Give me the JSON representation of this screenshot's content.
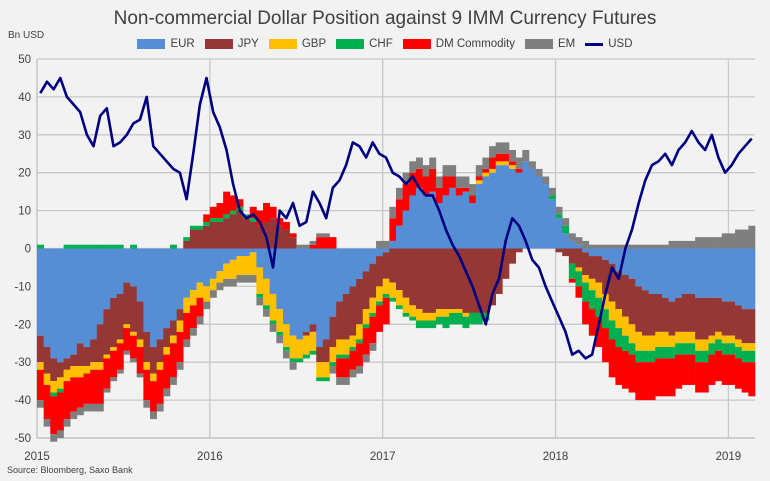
{
  "chart_data": {
    "type": "bar",
    "subtype": "stacked-bar-with-line",
    "title": "Non-commercial Dollar Position against 9 IMM Currency Futures",
    "ylabel": "Bn USD",
    "xlabel": "",
    "ylim": [
      -50,
      50
    ],
    "yticks": [
      50,
      40,
      30,
      20,
      10,
      0,
      -10,
      -20,
      -30,
      -40,
      -50
    ],
    "xticks": [
      "2015",
      "2016",
      "2017",
      "2018",
      "2019"
    ],
    "xtick_positions_in_periods": [
      0,
      26,
      52,
      78,
      104
    ],
    "period": "biweekly, Jan 2015 - Feb 2019",
    "grid": true,
    "legend_position": "top",
    "source": "Source: Bloomberg, Saxo Bank",
    "series": [
      {
        "name": "EUR",
        "kind": "bar",
        "color": "#558ed5",
        "values": [
          -23,
          -26,
          -29,
          -30,
          -29,
          -28,
          -25,
          -26,
          -24,
          -20,
          -16,
          -13,
          -12,
          -9,
          -10,
          -14,
          -22,
          -26,
          -24,
          -21,
          -19,
          -16,
          -13,
          -11,
          -9,
          -10,
          -8,
          -6,
          -4,
          -3,
          -2,
          -2,
          -1,
          -5,
          -8,
          -12,
          -16,
          -20,
          -23,
          -24,
          -22,
          -20,
          -26,
          -24,
          -18,
          -14,
          -12,
          -10,
          -8,
          -6,
          -4,
          -2,
          -1,
          2,
          6,
          10,
          14,
          16,
          14,
          15,
          12,
          14,
          16,
          14,
          15,
          12,
          17,
          19,
          20,
          22,
          22,
          21,
          20,
          23,
          21,
          19,
          17,
          13,
          8,
          4,
          2,
          1,
          -1,
          -2,
          -2,
          -3,
          -4,
          -6,
          -7,
          -8,
          -10,
          -11,
          -12,
          -12,
          -13,
          -14,
          -13,
          -12,
          -12,
          -13,
          -13,
          -13,
          -13,
          -14,
          -14,
          -15,
          -16,
          -16
        ]
      },
      {
        "name": "JPY",
        "kind": "bar",
        "color": "#953735",
        "values": [
          -7,
          -7,
          -6,
          -4,
          -3,
          -3,
          -6,
          -5,
          -6,
          -10,
          -12,
          -13,
          -12,
          -11,
          -12,
          -10,
          -8,
          -7,
          -6,
          -5,
          -4,
          -3,
          2,
          5,
          5,
          6,
          7,
          7,
          8,
          9,
          10,
          8,
          7,
          6,
          7,
          8,
          6,
          5,
          3,
          0,
          -1,
          -2,
          -4,
          -6,
          -8,
          -10,
          -12,
          -13,
          -12,
          -10,
          -9,
          -8,
          -7,
          -9,
          -11,
          -13,
          -15,
          -16,
          -17,
          -17,
          -16,
          -16,
          -16,
          -16,
          -17,
          -17,
          -17,
          -17,
          -15,
          -12,
          -8,
          -4,
          -1,
          0,
          0,
          0,
          0,
          0,
          -1,
          -2,
          -4,
          -5,
          -6,
          -6,
          -7,
          -9,
          -10,
          -10,
          -11,
          -12,
          -12,
          -12,
          -11,
          -10,
          -9,
          -9,
          -9,
          -10,
          -10,
          -11,
          -11,
          -10,
          -9,
          -9,
          -9,
          -9,
          -9,
          -9
        ]
      },
      {
        "name": "GBP",
        "kind": "bar",
        "color": "#ffc000",
        "values": [
          -2,
          -3,
          -3,
          -3,
          -3,
          -3,
          -3,
          -2,
          -2,
          -2,
          -1,
          -1,
          -1,
          -1,
          -1,
          -2,
          -2,
          -2,
          -2,
          -2,
          -2,
          -3,
          -4,
          -4,
          -4,
          -4,
          -3,
          -3,
          -4,
          -5,
          -5,
          -5,
          -6,
          -7,
          -7,
          -7,
          -6,
          -6,
          -6,
          -5,
          -5,
          -5,
          -4,
          -4,
          -4,
          -4,
          -4,
          -3,
          -4,
          -4,
          -4,
          -4,
          -4,
          -4,
          -4,
          -4,
          -3,
          -3,
          -2,
          -2,
          -2,
          -2,
          -1,
          -1,
          -1,
          0,
          1,
          1,
          1,
          1,
          1,
          1,
          0,
          0,
          0,
          0,
          0,
          0,
          0,
          0,
          0,
          -1,
          -2,
          -3,
          -4,
          -4,
          -5,
          -5,
          -5,
          -5,
          -5,
          -4,
          -4,
          -4,
          -4,
          -3,
          -3,
          -3,
          -3,
          -3,
          -3,
          -2,
          -2,
          -2,
          -2,
          -2,
          -2,
          -2
        ]
      },
      {
        "name": "CHF",
        "kind": "bar",
        "color": "#00b050",
        "values": [
          1,
          0,
          -1,
          -1,
          1,
          1,
          1,
          1,
          1,
          1,
          1,
          1,
          1,
          0,
          1,
          0,
          0,
          0,
          0,
          0,
          1,
          0,
          1,
          1,
          1,
          1,
          1,
          1,
          1,
          1,
          1,
          1,
          1,
          -1,
          -1,
          -1,
          -1,
          -1,
          -1,
          -1,
          -1,
          -1,
          -1,
          -1,
          -1,
          -1,
          -1,
          -1,
          -1,
          -1,
          -1,
          -1,
          -1,
          -1,
          -1,
          -1,
          -1,
          -2,
          -2,
          -2,
          -2,
          -3,
          -3,
          -3,
          -3,
          -3,
          -3,
          -2,
          0,
          0,
          0,
          0,
          0,
          0,
          0,
          0,
          0,
          1,
          1,
          2,
          -4,
          -4,
          -5,
          -5,
          -5,
          -5,
          -5,
          -5,
          -4,
          -3,
          -3,
          -3,
          -3,
          -3,
          -3,
          -3,
          -3,
          -3,
          -3,
          -3,
          -3,
          -3,
          -3,
          -3,
          -3,
          -3,
          -3,
          -3
        ]
      },
      {
        "name": "DM Commodity",
        "kind": "bar",
        "color": "#ff0000",
        "values": [
          -8,
          -9,
          -10,
          -10,
          -10,
          -9,
          -8,
          -8,
          -9,
          -9,
          -8,
          -7,
          -7,
          -6,
          -6,
          -7,
          -8,
          -8,
          -9,
          -9,
          -9,
          -8,
          -7,
          -6,
          -5,
          2,
          3,
          4,
          6,
          4,
          2,
          0,
          3,
          4,
          5,
          3,
          2,
          2,
          1,
          0,
          0,
          1,
          3,
          3,
          3,
          -5,
          -5,
          -5,
          -6,
          -7,
          -7,
          -7,
          -7,
          6,
          7,
          7,
          6,
          5,
          5,
          6,
          4,
          5,
          3,
          2,
          1,
          2,
          1,
          1,
          3,
          2,
          2,
          1,
          1,
          0,
          0,
          0,
          0,
          0,
          0,
          0,
          -1,
          -3,
          -6,
          -7,
          -8,
          -9,
          -10,
          -10,
          -10,
          -10,
          -10,
          -10,
          -10,
          -10,
          -10,
          -10,
          -9,
          -8,
          -8,
          -8,
          -8,
          -8,
          -8,
          -8,
          -8,
          -8,
          -8,
          -9
        ]
      },
      {
        "name": "EM",
        "kind": "bar",
        "color": "#7f7f7f",
        "values": [
          -2,
          -2,
          -2,
          -2,
          -2,
          -2,
          -2,
          -2,
          -2,
          -2,
          -1,
          -1,
          -1,
          -1,
          -1,
          -1,
          -2,
          -2,
          -2,
          -2,
          -2,
          -2,
          -2,
          -2,
          -2,
          -2,
          -2,
          -2,
          -2,
          -2,
          -2,
          -2,
          -2,
          -2,
          -2,
          -2,
          -2,
          -2,
          -2,
          1,
          1,
          1,
          1,
          1,
          -2,
          -2,
          -2,
          -2,
          -2,
          -2,
          -2,
          2,
          2,
          3,
          3,
          3,
          3,
          3,
          3,
          3,
          3,
          3,
          3,
          3,
          3,
          3,
          3,
          3,
          3,
          3,
          3,
          3,
          3,
          3,
          2,
          2,
          2,
          2,
          2,
          2,
          2,
          2,
          2,
          1,
          1,
          1,
          1,
          1,
          1,
          1,
          1,
          1,
          1,
          1,
          1,
          2,
          2,
          2,
          2,
          3,
          3,
          3,
          3,
          4,
          4,
          5,
          5,
          6
        ]
      },
      {
        "name": "USD",
        "kind": "line",
        "color": "#000080",
        "values": [
          41,
          44,
          42,
          45,
          40,
          38,
          36,
          30,
          27,
          35,
          37,
          27,
          28,
          30,
          33,
          34,
          40,
          27,
          25,
          23,
          21,
          20,
          13,
          25,
          38,
          45,
          36,
          32,
          26,
          17,
          10,
          8,
          9,
          7,
          3,
          -5,
          10,
          8,
          12,
          6,
          7,
          15,
          12,
          8,
          16,
          18,
          22,
          28,
          27,
          24,
          28,
          25,
          24,
          20,
          19,
          17,
          19,
          16,
          14,
          14,
          10,
          5,
          1,
          -2,
          -6,
          -10,
          -15,
          -20,
          -12,
          -8,
          2,
          8,
          6,
          2,
          -3,
          -5,
          -10,
          -14,
          -18,
          -22,
          -28,
          -27,
          -29,
          -28,
          -20,
          -12,
          -5,
          -8,
          0,
          5,
          12,
          18,
          22,
          23,
          25,
          22,
          26,
          28,
          31,
          28,
          26,
          30,
          24,
          20,
          22,
          25,
          27,
          29
        ]
      }
    ]
  },
  "legend": [
    {
      "label": "EUR",
      "color": "#558ed5",
      "kind": "bar"
    },
    {
      "label": "JPY",
      "color": "#953735",
      "kind": "bar"
    },
    {
      "label": "GBP",
      "color": "#ffc000",
      "kind": "bar"
    },
    {
      "label": "CHF",
      "color": "#00b050",
      "kind": "bar"
    },
    {
      "label": "DM Commodity",
      "color": "#ff0000",
      "kind": "bar"
    },
    {
      "label": "EM",
      "color": "#7f7f7f",
      "kind": "bar"
    },
    {
      "label": "USD",
      "color": "#000080",
      "kind": "line"
    }
  ]
}
